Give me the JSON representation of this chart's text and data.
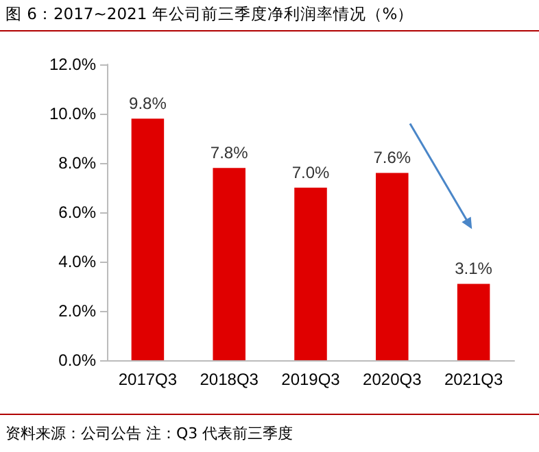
{
  "chart_data": {
    "type": "bar",
    "title": "图 6：2017~2021 年公司前三季度净利润率情况（%）",
    "categories": [
      "2017Q3",
      "2018Q3",
      "2019Q3",
      "2020Q3",
      "2021Q3"
    ],
    "values": [
      9.8,
      7.8,
      7.0,
      7.6,
      3.1
    ],
    "value_labels": [
      "9.8%",
      "7.8%",
      "7.0%",
      "7.6%",
      "3.1%"
    ],
    "color": "#e00000",
    "ylim": [
      0,
      12
    ],
    "yticks": [
      {
        "value": 0,
        "label": "0.0%"
      },
      {
        "value": 2,
        "label": "2.0%"
      },
      {
        "value": 4,
        "label": "4.0%"
      },
      {
        "value": 6,
        "label": "6.0%"
      },
      {
        "value": 8,
        "label": "8.0%"
      },
      {
        "value": 10,
        "label": "10.0%"
      },
      {
        "value": 12,
        "label": "12.0%"
      }
    ],
    "grid": false,
    "annotations": [
      "资料来源：公司公告 注：Q3 代表前三季度"
    ]
  }
}
